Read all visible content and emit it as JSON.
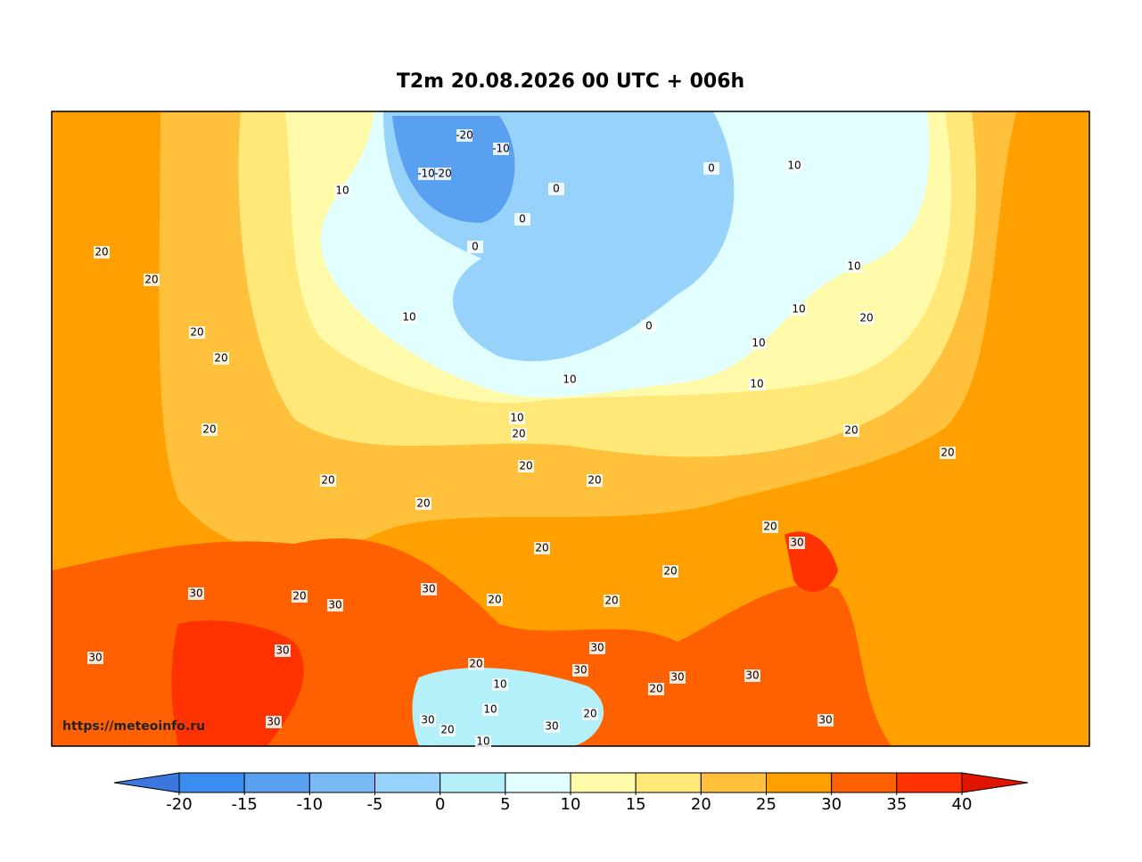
{
  "title": "T2m 20.08.2026 00 UTC + 006h",
  "watermark": "https://meteoinfo.ru",
  "colorbar": {
    "ticks": [
      -20,
      -15,
      -10,
      -5,
      0,
      5,
      10,
      15,
      20,
      25,
      30,
      35,
      40
    ],
    "colors": [
      "#3a78e0",
      "#3c8cf0",
      "#5aa0f0",
      "#78b9f5",
      "#96d2fa",
      "#b4f0fa",
      "#e1ffff",
      "#fffaaa",
      "#ffe878",
      "#ffc03c",
      "#ffa000",
      "#ff6000",
      "#ff3200",
      "#e11400"
    ]
  },
  "contour_labels": [
    -20,
    -10,
    -10,
    -20,
    10,
    0,
    0,
    0,
    0,
    10,
    10,
    10,
    20,
    10,
    10,
    0,
    10,
    10,
    10,
    20,
    20,
    20,
    20,
    20,
    20,
    20,
    20,
    20,
    20,
    20,
    20,
    20,
    30,
    20,
    20,
    20,
    20,
    30,
    20,
    30,
    30,
    30,
    30,
    30,
    20,
    30,
    10,
    20,
    30,
    30,
    10,
    20,
    30,
    30,
    30,
    30,
    20,
    10
  ]
}
